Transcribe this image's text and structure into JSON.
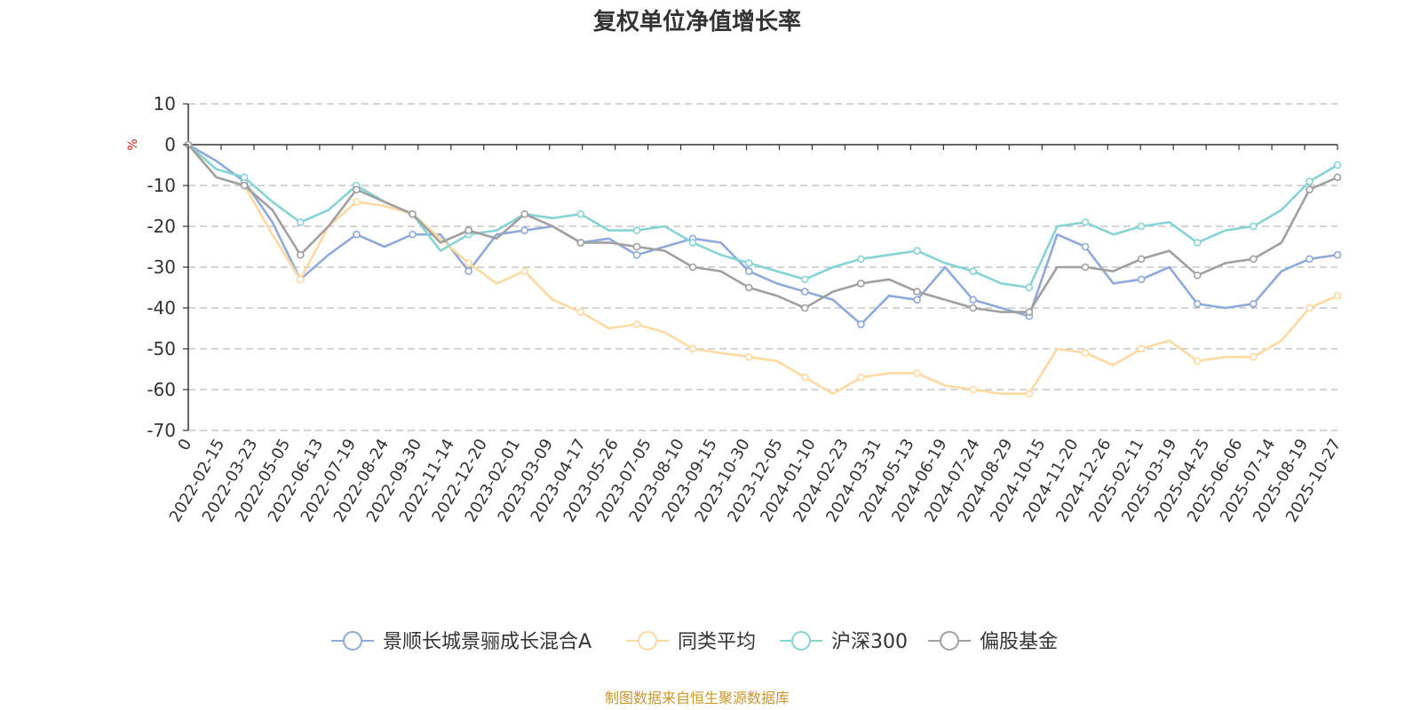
{
  "colors": {
    "fund": "#8eaadb",
    "peer": "#ffd9a0",
    "hs300": "#86d3d6",
    "equity": "#a0a0a0",
    "unit": "#e02020",
    "source": "#c8982c",
    "axis": "#333333",
    "grid": "#bbbbbb"
  },
  "source_text": "制图数据来自恒生聚源数据库",
  "chart_data": {
    "type": "line",
    "title": "复权单位净值增长率",
    "ylabel": "%",
    "xlabel": "",
    "ylim": [
      -70,
      10
    ],
    "yticks": [
      10,
      0,
      -10,
      -20,
      -30,
      -40,
      -50,
      -60,
      -70
    ],
    "grid": "horizontal dashed",
    "legend_position": "bottom-center",
    "x_ticks": [
      "0",
      "2022-02-15",
      "2022-03-23",
      "2022-05-05",
      "2022-06-13",
      "2022-07-19",
      "2022-08-24",
      "2022-09-30",
      "2022-11-14",
      "2022-12-20",
      "2023-02-01",
      "2023-03-09",
      "2023-04-17",
      "2023-05-26",
      "2023-07-05",
      "2023-08-10",
      "2023-09-15",
      "2023-10-30",
      "2023-12-05",
      "2024-01-10",
      "2024-02-23",
      "2024-03-31",
      "2024-05-13",
      "2024-06-19",
      "2024-07-24",
      "2024-08-29",
      "2024-10-15",
      "2024-11-20",
      "2024-12-26",
      "2025-02-11",
      "2025-03-19",
      "2025-04-25",
      "2025-06-06",
      "2025-07-14",
      "2025-08-19",
      "2025-10-27"
    ],
    "series": [
      {
        "name": "景顺长城景骊成长混合A",
        "color_key": "fund",
        "values": [
          0,
          -4,
          -9,
          -19,
          -33,
          -27,
          -22,
          -25,
          -22,
          -22,
          -31,
          -22,
          -21,
          -20,
          -24,
          -23,
          -27,
          -25,
          -23,
          -24,
          -31,
          -34,
          -36,
          -38,
          -44,
          -37,
          -38,
          -30,
          -38,
          -40,
          -42,
          -22,
          -25,
          -34,
          -33,
          -30,
          -39,
          -40,
          -39,
          -31,
          -28,
          -27
        ]
      },
      {
        "name": "同类平均",
        "color_key": "peer",
        "values": [
          0,
          -8,
          -10,
          -22,
          -33,
          -20,
          -14,
          -15,
          -17,
          -23,
          -29,
          -34,
          -31,
          -38,
          -41,
          -45,
          -44,
          -46,
          -50,
          -51,
          -52,
          -53,
          -57,
          -61,
          -57,
          -56,
          -56,
          -59,
          -60,
          -61,
          -61,
          -50,
          -51,
          -54,
          -50,
          -48,
          -53,
          -52,
          -52,
          -48,
          -40,
          -37
        ]
      },
      {
        "name": "沪深300",
        "color_key": "hs300",
        "values": [
          0,
          -6,
          -8,
          -14,
          -19,
          -16,
          -10,
          -14,
          -17,
          -26,
          -22,
          -21,
          -17,
          -18,
          -17,
          -21,
          -21,
          -20,
          -24,
          -27,
          -29,
          -31,
          -33,
          -30,
          -28,
          -27,
          -26,
          -29,
          -31,
          -34,
          -35,
          -20,
          -19,
          -22,
          -20,
          -19,
          -24,
          -21,
          -20,
          -16,
          -9,
          -5
        ]
      },
      {
        "name": "偏股基金",
        "color_key": "equity",
        "values": [
          0,
          -8,
          -10,
          -16,
          -27,
          -20,
          -11,
          -14,
          -17,
          -24,
          -21,
          -23,
          -17,
          -20,
          -24,
          -24,
          -25,
          -26,
          -30,
          -31,
          -35,
          -37,
          -40,
          -36,
          -34,
          -33,
          -36,
          -38,
          -40,
          -41,
          -41,
          -30,
          -30,
          -31,
          -28,
          -26,
          -32,
          -29,
          -28,
          -24,
          -11,
          -8
        ]
      }
    ]
  }
}
